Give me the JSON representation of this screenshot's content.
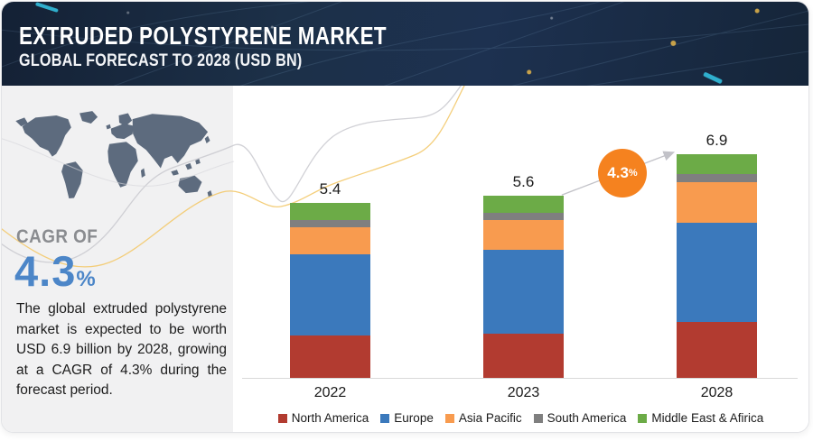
{
  "header": {
    "title": "EXTRUDED POLYSTYRENE MARKET",
    "subtitle": "GLOBAL FORECAST TO 2028 (USD BN)"
  },
  "sidebar": {
    "cagr_label": "CAGR OF",
    "cagr_value": "4.3",
    "cagr_unit": "%",
    "description": "The global extruded polystyrene market is expected to be worth USD 6.9 billion by 2028, growing at a CAGR of 4.3% during the forecast period."
  },
  "chart_data": {
    "type": "bar",
    "stacked": true,
    "title": "EXTRUDED POLYSTYRENE MARKET — GLOBAL FORECAST TO 2028 (USD BN)",
    "categories": [
      "2022",
      "2023",
      "2028"
    ],
    "totals": [
      5.4,
      5.6,
      6.9
    ],
    "total_labels": [
      "5.4",
      "5.6",
      "6.9"
    ],
    "series": [
      {
        "name": "North America",
        "color": "#b23b30",
        "values": [
          1.3,
          1.36,
          1.72
        ]
      },
      {
        "name": "Europe",
        "color": "#3b79bc",
        "values": [
          2.5,
          2.57,
          3.07
        ]
      },
      {
        "name": "Asia Pacific",
        "color": "#f89b4f",
        "values": [
          0.85,
          0.92,
          1.25
        ]
      },
      {
        "name": "South America",
        "color": "#7f7f7f",
        "values": [
          0.22,
          0.22,
          0.25
        ]
      },
      {
        "name": "Middle East & Afirica",
        "color": "#6cab47",
        "values": [
          0.53,
          0.53,
          0.61
        ]
      }
    ],
    "growth_badge": {
      "value": "4.3",
      "unit": "%",
      "color": "#f5821f"
    },
    "xlabel": "",
    "ylabel": "",
    "ylim": [
      0,
      7.5
    ],
    "grid": false,
    "legend_position": "bottom",
    "axis_color": "#d9d9d9"
  },
  "colors": {
    "header_bg": "#1c3048",
    "sidebar_bg": "#f1f1f2",
    "map_fill": "#5d6b7e",
    "cagr_blue": "#4c86c8",
    "arrow_gray": "#c2c2c8",
    "curve_gray": "#c9c9cf",
    "curve_yellow": "#f3c96b"
  }
}
